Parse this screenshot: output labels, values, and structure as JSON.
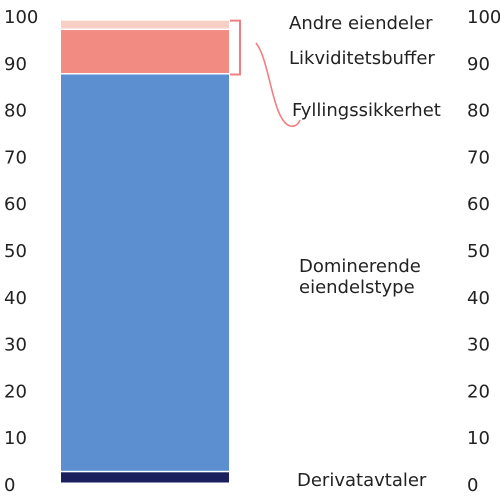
{
  "chart_data": {
    "type": "bar",
    "stacked": true,
    "categories": [
      ""
    ],
    "ylim": [
      0,
      100
    ],
    "yticks": [
      0,
      10,
      20,
      30,
      40,
      50,
      60,
      70,
      80,
      90,
      100
    ],
    "y_axis_sides": [
      "left",
      "right"
    ],
    "grid": false,
    "series": [
      {
        "name": "Derivatavtaler",
        "values": [
          2.5
        ],
        "color": "#1a1f5e"
      },
      {
        "name": "Dominerende eiendelstype",
        "values": [
          85.0
        ],
        "color": "#5b8fcf"
      },
      {
        "name": "Fyllingssikkerhet",
        "values": [
          0.0
        ],
        "color": "#ffffff"
      },
      {
        "name": "Likviditetsbuffer",
        "values": [
          9.5
        ],
        "color": "#f28b82"
      },
      {
        "name": "Andre eiendeler",
        "values": [
          2.0
        ],
        "color": "#f8cfc5"
      }
    ],
    "labels": {
      "derivatavtaler": "Derivatavtaler",
      "dominerende_line1": "Dominerende",
      "dominerende_line2": "eiendelstype",
      "fyllingssikkerhet": "Fyllingssikkerhet",
      "likviditetsbuffer": "Likviditetsbuffer",
      "andre_eiendeler": "Andre eiendeler"
    },
    "title": "",
    "xlabel": "",
    "ylabel": ""
  }
}
